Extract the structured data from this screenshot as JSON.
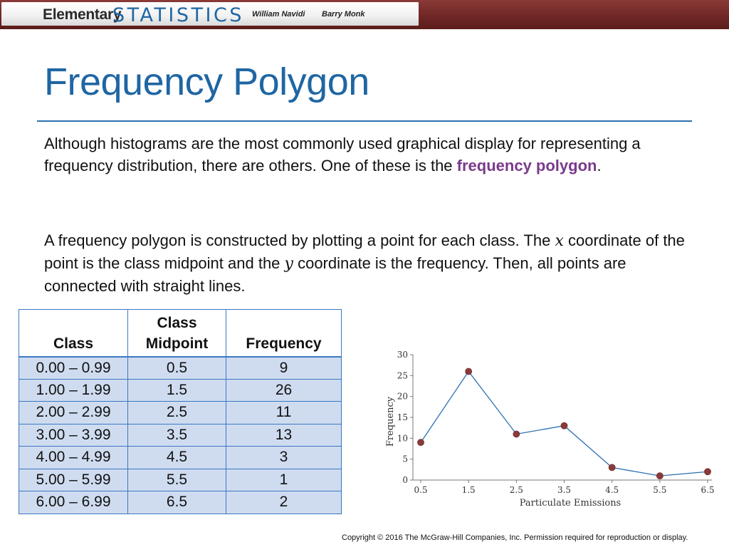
{
  "header": {
    "book_word_1": "Elementary",
    "book_word_2": "STATISTICS",
    "author_1": "William Navidi",
    "author_2": "Barry Monk",
    "band_color": "#6e2624"
  },
  "slide": {
    "title": "Frequency Polygon",
    "para1": {
      "text_before": "Although histograms are the most commonly used graphical display for representing a frequency distribution, there are others.  One of these is the ",
      "term": "frequency polygon",
      "text_after": "."
    },
    "para2": {
      "t1": "A frequency polygon is constructed by plotting a point for each class.  The ",
      "var_x": "x",
      "t2": " coordinate of the point is the class midpoint and the ",
      "var_y": "y",
      "t3": " coordinate is the frequency.  Then, all points are connected with straight lines."
    }
  },
  "table": {
    "headers": [
      "Class",
      "Class Midpoint",
      "Frequency"
    ],
    "rows": [
      [
        "0.00 – 0.99",
        "0.5",
        "9"
      ],
      [
        "1.00 – 1.99",
        "1.5",
        "26"
      ],
      [
        "2.00 – 2.99",
        "2.5",
        "11"
      ],
      [
        "3.00 – 3.99",
        "3.5",
        "13"
      ],
      [
        "4.00 – 4.99",
        "4.5",
        "3"
      ],
      [
        "5.00 – 5.99",
        "5.5",
        "1"
      ],
      [
        "6.00 – 6.99",
        "6.5",
        "2"
      ]
    ]
  },
  "chart_data": {
    "type": "line",
    "x": [
      0.5,
      1.5,
      2.5,
      3.5,
      4.5,
      5.5,
      6.5
    ],
    "x_tick_labels": [
      "0.5",
      "1.5",
      "2.5",
      "3.5",
      "4.5",
      "5.5",
      "6.5"
    ],
    "series": [
      {
        "values": [
          9,
          26,
          11,
          13,
          3,
          1,
          2
        ]
      }
    ],
    "y_ticks": [
      0,
      5,
      10,
      15,
      20,
      25,
      30
    ],
    "ylim": [
      0,
      30
    ],
    "xlabel": "Particulate Emissions",
    "ylabel": "Frequency",
    "grid": false,
    "line_color": "#2a6fb0",
    "marker_color": "#8b3a3a"
  },
  "footer": {
    "copyright": "Copyright © 2016 The McGraw-Hill Companies, Inc. Permission required for reproduction or display."
  }
}
